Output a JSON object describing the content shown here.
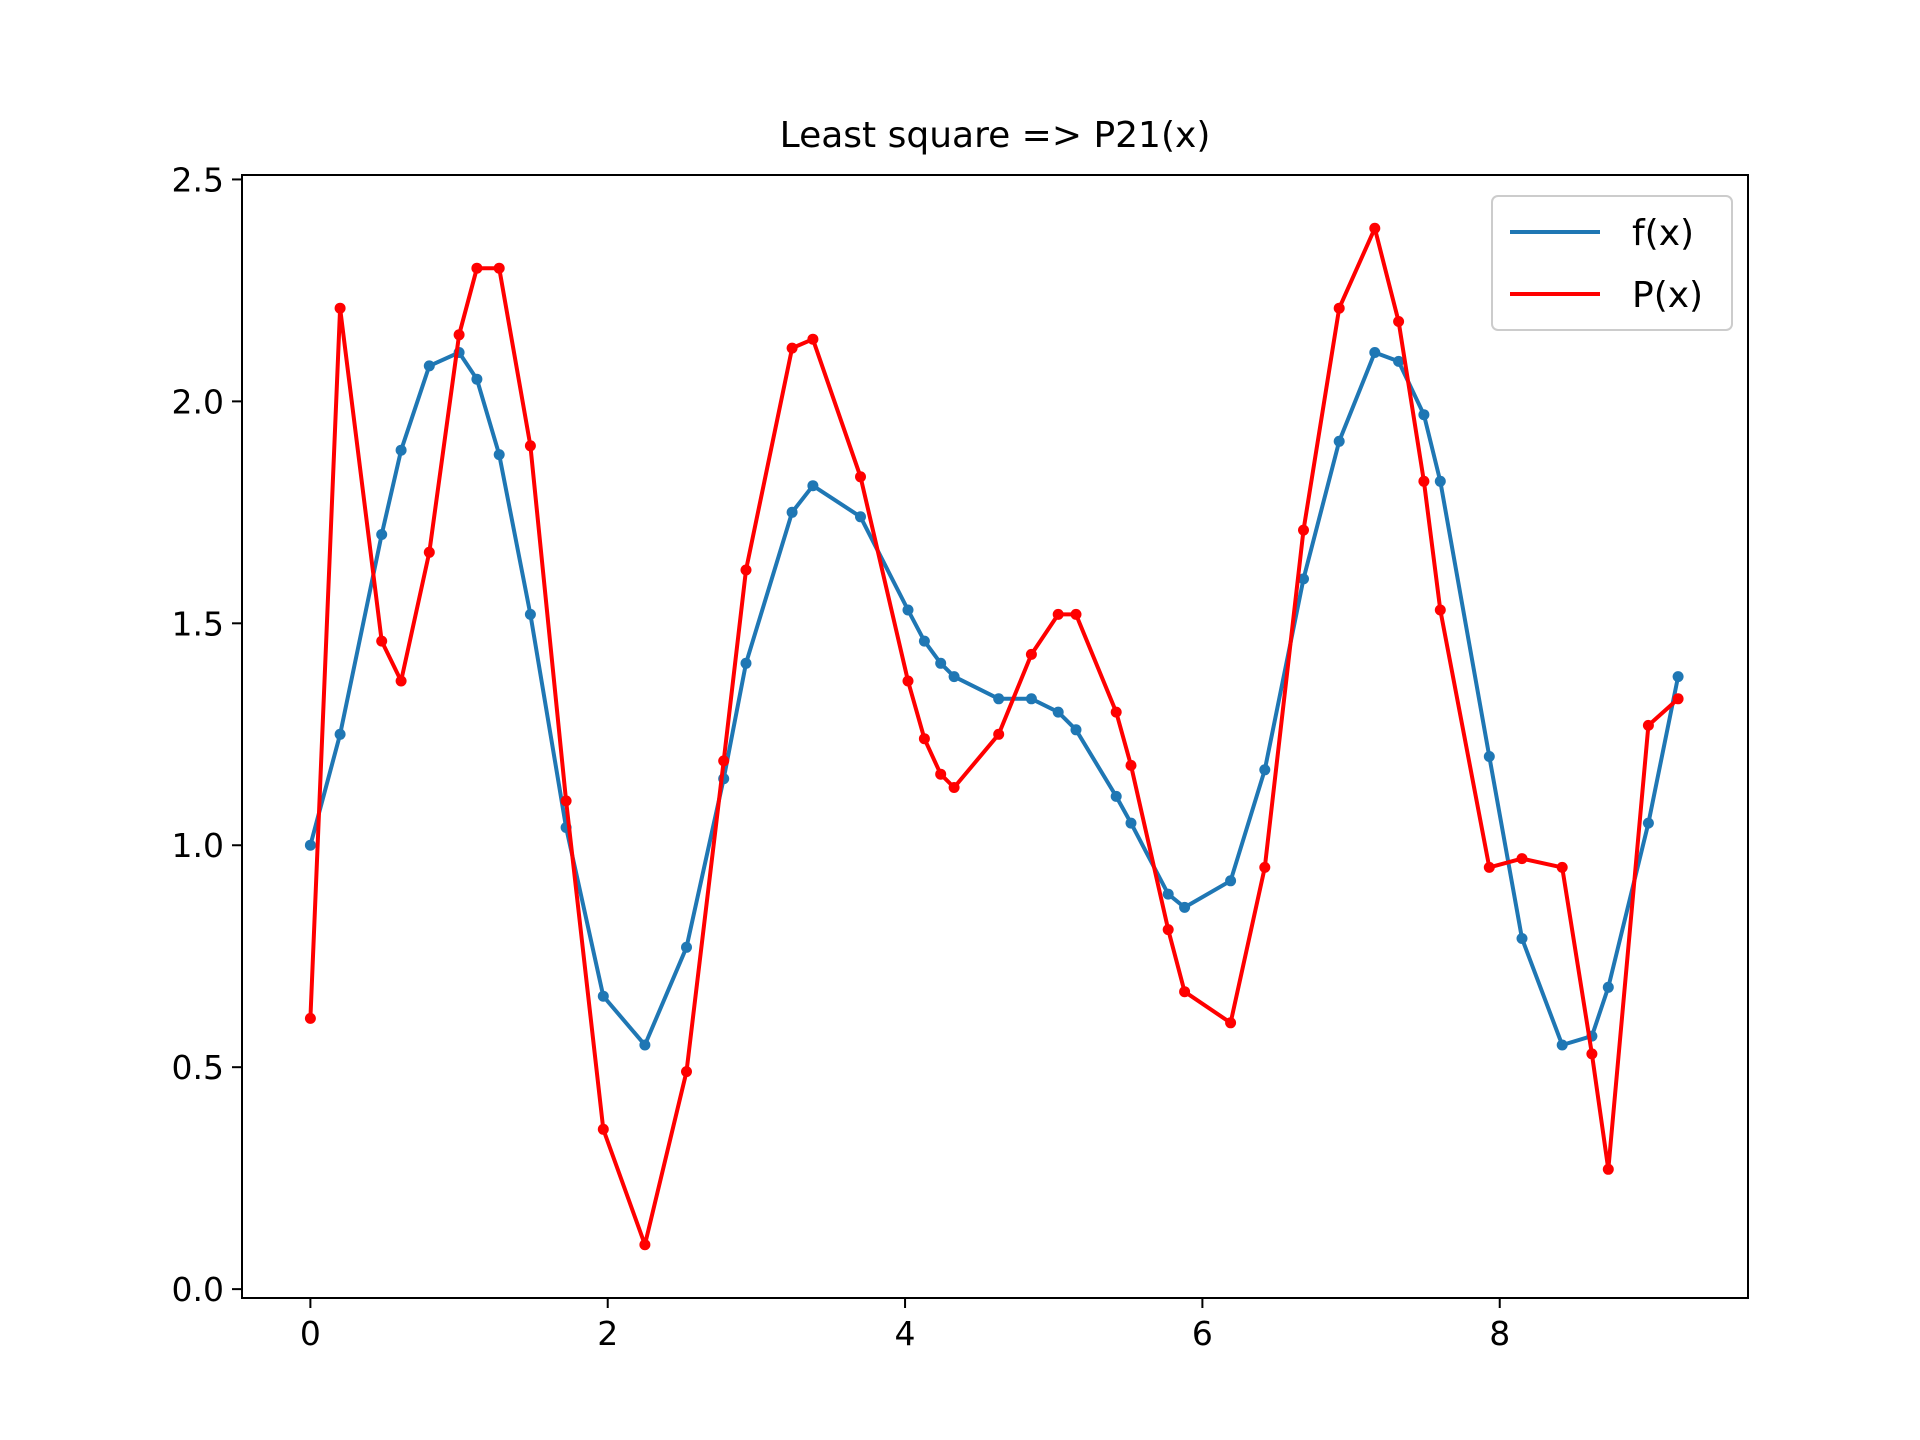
{
  "chart_data": {
    "type": "line",
    "title": "Least square => P21(x)",
    "xlabel": "",
    "ylabel": "",
    "xlim": [
      -0.46,
      9.67
    ],
    "ylim": [
      -0.02,
      2.51
    ],
    "xticks": [
      0,
      2,
      4,
      6,
      8
    ],
    "xtick_labels": [
      "0",
      "2",
      "4",
      "6",
      "8"
    ],
    "yticks": [
      0.0,
      0.5,
      1.0,
      1.5,
      2.0,
      2.5
    ],
    "ytick_labels": [
      "0.0",
      "0.5",
      "1.0",
      "1.5",
      "2.0",
      "2.5"
    ],
    "grid": false,
    "legend_position": "top-right",
    "series": [
      {
        "name": "f(x)",
        "color": "#1f77b4",
        "x": [
          0,
          0.2,
          0.48,
          0.61,
          0.8,
          1.0,
          1.12,
          1.27,
          1.48,
          1.72,
          1.97,
          2.25,
          2.53,
          2.78,
          2.93,
          3.24,
          3.38,
          3.7,
          4.02,
          4.13,
          4.24,
          4.33,
          4.63,
          4.85,
          5.03,
          5.15,
          5.42,
          5.52,
          5.77,
          5.88,
          6.19,
          6.42,
          6.68,
          6.92,
          7.16,
          7.32,
          7.49,
          7.6,
          7.93,
          8.15,
          8.42,
          8.62,
          8.73,
          9.0,
          9.2
        ],
        "values": [
          1.0,
          1.25,
          1.7,
          1.89,
          2.08,
          2.11,
          2.05,
          1.88,
          1.52,
          1.04,
          0.66,
          0.55,
          0.77,
          1.15,
          1.41,
          1.75,
          1.81,
          1.74,
          1.53,
          1.46,
          1.41,
          1.38,
          1.33,
          1.33,
          1.3,
          1.26,
          1.11,
          1.05,
          0.89,
          0.86,
          0.92,
          1.17,
          1.6,
          1.91,
          2.11,
          2.09,
          1.97,
          1.82,
          1.2,
          0.79,
          0.55,
          0.57,
          0.68,
          1.05,
          1.38
        ]
      },
      {
        "name": "P(x)",
        "color": "#ff0000",
        "x": [
          0,
          0.2,
          0.48,
          0.61,
          0.8,
          1.0,
          1.12,
          1.27,
          1.48,
          1.72,
          1.97,
          2.25,
          2.53,
          2.78,
          2.93,
          3.24,
          3.38,
          3.7,
          4.02,
          4.13,
          4.24,
          4.33,
          4.63,
          4.85,
          5.03,
          5.15,
          5.42,
          5.52,
          5.77,
          5.88,
          6.19,
          6.42,
          6.68,
          6.92,
          7.16,
          7.32,
          7.49,
          7.6,
          7.93,
          8.15,
          8.42,
          8.62,
          8.73,
          9.0,
          9.2
        ],
        "values": [
          0.61,
          2.21,
          1.46,
          1.37,
          1.66,
          2.15,
          2.3,
          2.3,
          1.9,
          1.1,
          0.36,
          0.1,
          0.49,
          1.19,
          1.62,
          2.12,
          2.14,
          1.83,
          1.37,
          1.24,
          1.16,
          1.13,
          1.25,
          1.43,
          1.52,
          1.52,
          1.3,
          1.18,
          0.81,
          0.67,
          0.6,
          0.95,
          1.71,
          2.21,
          2.39,
          2.18,
          1.82,
          1.53,
          0.95,
          0.97,
          0.95,
          0.53,
          0.27,
          1.27,
          1.33
        ]
      }
    ]
  }
}
